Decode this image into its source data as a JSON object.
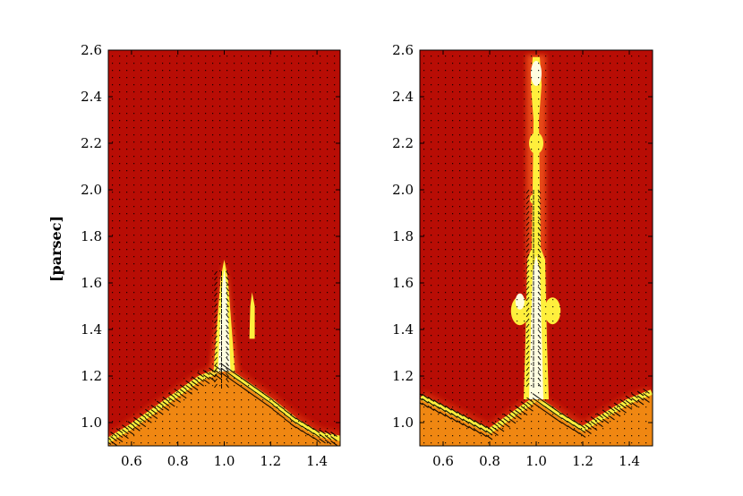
{
  "chart_data": [
    {
      "type": "heatmap",
      "panel": "left",
      "title": "",
      "xlabel": "",
      "ylabel": "[parsec]",
      "xlim": [
        0.5,
        1.5
      ],
      "ylim": [
        0.9,
        2.6
      ],
      "xticks": [
        "0.6",
        "0.8",
        "1.0",
        "1.2",
        "1.4"
      ],
      "yticks": [
        "1.0",
        "1.2",
        "1.4",
        "1.6",
        "1.8",
        "2.0",
        "2.2",
        "2.4",
        "2.6"
      ],
      "colors": {
        "background": "#b80d05",
        "dense": "#f08712",
        "edge": "#ffef3c",
        "hot": "#fffde0",
        "vectors": "#000000"
      },
      "dense_boundary": [
        [
          0.5,
          0.91
        ],
        [
          0.6,
          0.97
        ],
        [
          0.7,
          1.04
        ],
        [
          0.8,
          1.11
        ],
        [
          0.9,
          1.18
        ],
        [
          1.0,
          1.22
        ],
        [
          1.1,
          1.15
        ],
        [
          1.2,
          1.08
        ],
        [
          1.3,
          1.0
        ],
        [
          1.4,
          0.94
        ],
        [
          1.5,
          0.92
        ]
      ],
      "features": [
        {
          "name": "central-pillar",
          "x": 1.0,
          "y_top": 1.7,
          "width": 0.035
        },
        {
          "name": "side-spike",
          "x": 1.12,
          "y_top": 1.55,
          "width": 0.015
        }
      ]
    },
    {
      "type": "heatmap",
      "panel": "right",
      "title": "",
      "xlabel": "",
      "ylabel": "",
      "xlim": [
        0.5,
        1.5
      ],
      "ylim": [
        0.9,
        2.6
      ],
      "xticks": [
        "0.6",
        "0.8",
        "1.0",
        "1.2",
        "1.4"
      ],
      "yticks": [
        "1.0",
        "1.2",
        "1.4",
        "1.6",
        "1.8",
        "2.0",
        "2.2",
        "2.4",
        "2.6"
      ],
      "colors": {
        "background": "#b80d05",
        "dense": "#f08712",
        "edge": "#ffef3c",
        "hot": "#fffde0",
        "vectors": "#000000"
      },
      "dense_boundary": [
        [
          0.5,
          1.1
        ],
        [
          0.6,
          1.05
        ],
        [
          0.7,
          1.0
        ],
        [
          0.8,
          0.95
        ],
        [
          0.9,
          1.02
        ],
        [
          1.0,
          1.09
        ],
        [
          1.1,
          1.02
        ],
        [
          1.2,
          0.96
        ],
        [
          1.3,
          1.02
        ],
        [
          1.4,
          1.08
        ],
        [
          1.5,
          1.12
        ]
      ],
      "features": [
        {
          "name": "central-column",
          "x": 1.0,
          "y_top": 2.58,
          "width": 0.03
        },
        {
          "name": "left-lobe",
          "x": 0.93,
          "y": 1.48
        },
        {
          "name": "right-lobe",
          "x": 1.07,
          "y": 1.48
        }
      ]
    }
  ]
}
